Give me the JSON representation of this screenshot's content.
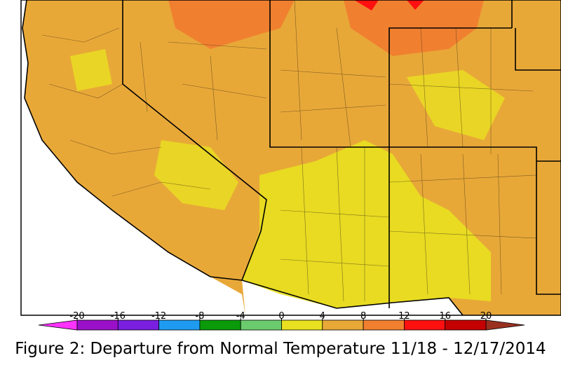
{
  "colorbar": {
    "ticks": [
      -20,
      -16,
      -12,
      -8,
      -4,
      0,
      4,
      8,
      12,
      16,
      20
    ],
    "colors": [
      "#ff33ff",
      "#9a10c8",
      "#7a1fe0",
      "#1e9bf0",
      "#0a9a0a",
      "#6ccb6c",
      "#e8e020",
      "#e8a838",
      "#f08030",
      "#ff1010",
      "#c40000",
      "#9a3020"
    ]
  },
  "caption": "Figure 2: Departure from Normal Temperature 11/18 - 12/17/2014"
}
